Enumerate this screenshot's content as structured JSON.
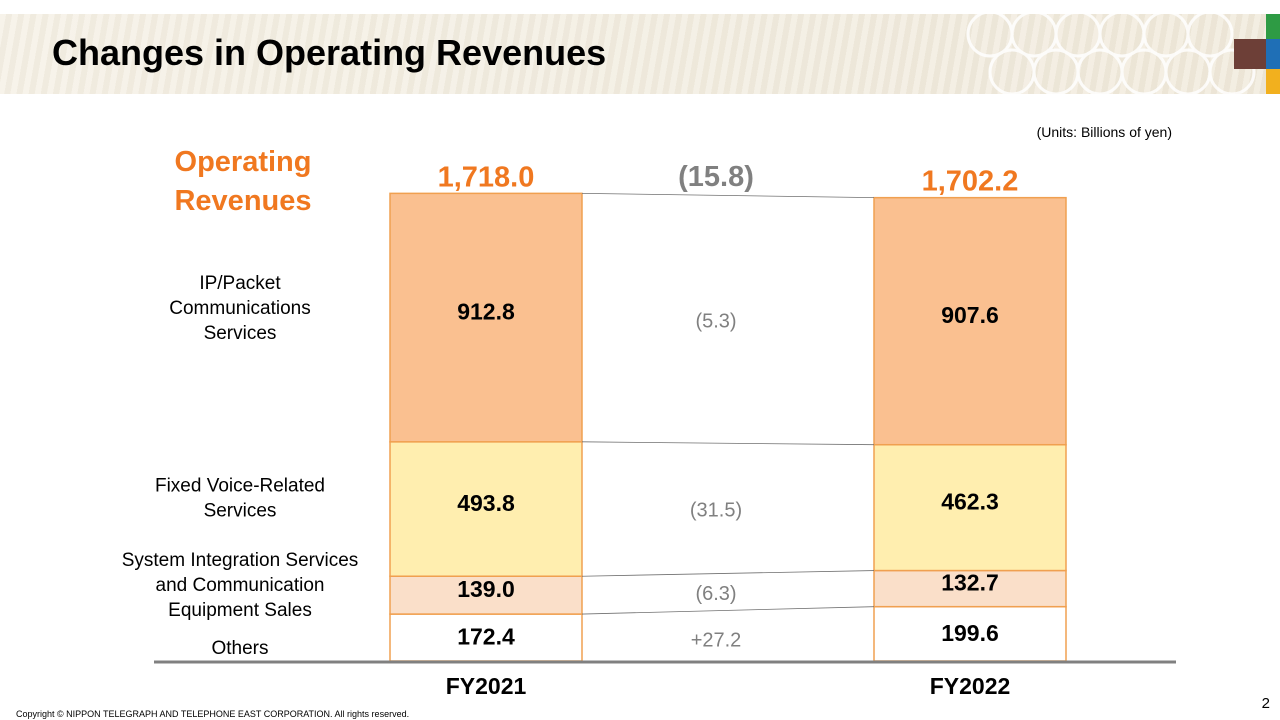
{
  "slide": {
    "title": "Changes in Operating Revenues",
    "units": "(Units:  Billions of yen)",
    "copyright": "Copyright © NIPPON TELEGRAPH AND TELEPHONE EAST CORPORATION. All rights reserved.",
    "page_number": "2",
    "brand_colors": [
      "#6d3f37",
      "#2e9b44",
      "#1f6fb6",
      "#f2b01e"
    ]
  },
  "chart_data": {
    "type": "bar",
    "stacked": true,
    "title": "",
    "ylabel": "",
    "xlabel": "",
    "total_label_line1": "Operating",
    "total_label_line2": "Revenues",
    "categories": [
      "FY2021",
      "FY2022"
    ],
    "totals": [
      1718.0,
      1702.2
    ],
    "total_labels": [
      "1,718.0",
      "1,702.2"
    ],
    "total_change_label": "(15.8)",
    "series": [
      {
        "name_lines": [
          "Others"
        ],
        "values": [
          172.4,
          199.6
        ],
        "value_labels": [
          "172.4",
          "199.6"
        ],
        "change_label": "+27.2",
        "color": "#ffffff"
      },
      {
        "name_lines": [
          "System Integration Services",
          "and Communication",
          "Equipment  Sales"
        ],
        "values": [
          139.0,
          132.7
        ],
        "value_labels": [
          "139.0",
          "132.7"
        ],
        "change_label": "(6.3)",
        "color": "#fadfc9"
      },
      {
        "name_lines": [
          "Fixed Voice-Related",
          "Services"
        ],
        "values": [
          493.8,
          462.3
        ],
        "value_labels": [
          "493.8",
          "462.3"
        ],
        "change_label": "(31.5)",
        "color": "#ffeeaf"
      },
      {
        "name_lines": [
          "IP/Packet",
          "Communications",
          "Services"
        ],
        "values": [
          912.8,
          907.6
        ],
        "value_labels": [
          "912.8",
          "907.6"
        ],
        "change_label": "(5.3)",
        "color": "#fac090"
      }
    ],
    "accent_color": "#f07820",
    "bar_border_color": "#f0a050",
    "axis_color": "#808080",
    "change_color": "#808080",
    "legend": "left",
    "grid": false
  }
}
